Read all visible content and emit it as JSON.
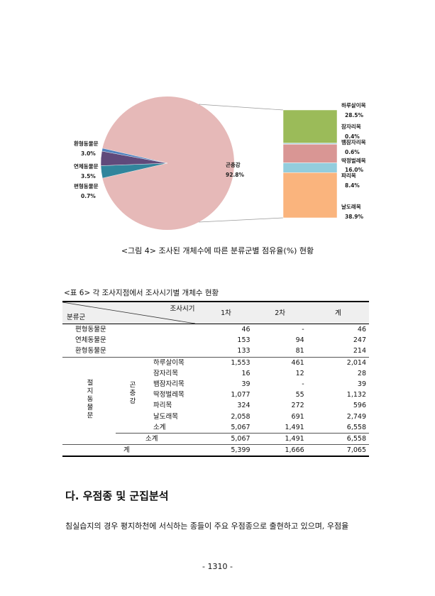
{
  "figure": {
    "caption": "<그림 4> 조사된 개체수에 따른 분류군별 점유율(%) 현황",
    "pie_labels": [
      {
        "name": "환형동물문",
        "value": "3.0%"
      },
      {
        "name": "연체동물문",
        "value": "3.5%"
      },
      {
        "name": "편형동물문",
        "value": "0.7%"
      },
      {
        "name": "곤충강",
        "value": "92.8%"
      }
    ],
    "bar_labels": [
      {
        "name": "하루살이목",
        "value": "28.5%"
      },
      {
        "name": "잠자리목",
        "value": "0.4%"
      },
      {
        "name": "뱀잠자리목",
        "value": "0.6%"
      },
      {
        "name": "딱정벌레목",
        "value": "16.0%"
      },
      {
        "name": "파리목",
        "value": "8.4%"
      },
      {
        "name": "날도래목",
        "value": "38.9%"
      }
    ]
  },
  "chart_data": {
    "type": "pie",
    "pie": {
      "slices": [
        {
          "label": "곤충강",
          "value": 92.8,
          "color": "#e6b9b8"
        },
        {
          "label": "환형동물문",
          "value": 3.0,
          "color": "#31859c"
        },
        {
          "label": "연체동물문",
          "value": 3.5,
          "color": "#604a7b"
        },
        {
          "label": "편형동물문",
          "value": 0.7,
          "color": "#4f81bd"
        }
      ]
    },
    "bar_of_pie": {
      "segments": [
        {
          "label": "하루살이목",
          "value": 28.5,
          "color": "#9bbb59"
        },
        {
          "label": "잠자리목",
          "value": 0.4,
          "color": "#8064a2"
        },
        {
          "label": "뱀잠자리목",
          "value": 0.6,
          "color": "#4bacc6"
        },
        {
          "label": "딱정벌레목",
          "value": 16.0,
          "color": "#d99694"
        },
        {
          "label": "파리목",
          "value": 8.4,
          "color": "#93cddd"
        },
        {
          "label": "날도래목",
          "value": 38.9,
          "color": "#fab47d"
        }
      ]
    }
  },
  "table": {
    "caption": "<표 6> 각 조사지점에서 조사시기별 개체수 현황",
    "header": {
      "diag_top": "조사시기",
      "diag_bottom": "분류군",
      "col1": "1차",
      "col2": "2차",
      "col3": "계"
    },
    "group_outer": "절지동물문",
    "group_inner": "곤충강",
    "rows_top": [
      {
        "name": "편형동물문",
        "c1": "46",
        "c2": "-",
        "c3": "46"
      },
      {
        "name": "연체동물문",
        "c1": "153",
        "c2": "94",
        "c3": "247"
      },
      {
        "name": "환형동물문",
        "c1": "133",
        "c2": "81",
        "c3": "214"
      }
    ],
    "rows_insect": [
      {
        "name": "하루살이목",
        "c1": "1,553",
        "c2": "461",
        "c3": "2,014"
      },
      {
        "name": "잠자리목",
        "c1": "16",
        "c2": "12",
        "c3": "28"
      },
      {
        "name": "뱀잠자리목",
        "c1": "39",
        "c2": "-",
        "c3": "39"
      },
      {
        "name": "딱정벌레목",
        "c1": "1,077",
        "c2": "55",
        "c3": "1,132"
      },
      {
        "name": "파리목",
        "c1": "324",
        "c2": "272",
        "c3": "596"
      },
      {
        "name": "날도래목",
        "c1": "2,058",
        "c2": "691",
        "c3": "2,749"
      }
    ],
    "insect_subtotal": {
      "name": "소계",
      "c1": "5,067",
      "c2": "1,491",
      "c3": "6,558"
    },
    "arthropod_subtotal": {
      "name": "소계",
      "c1": "5,067",
      "c2": "1,491",
      "c3": "6,558"
    },
    "total": {
      "name": "계",
      "c1": "5,399",
      "c2": "1,666",
      "c3": "7,065"
    }
  },
  "section": {
    "title": "다. 우점종 및 군집분석",
    "body": "침실습지의 경우 평지하천에 서식하는 종들이 주요 우점종으로 출현하고 있으며, 우점율"
  },
  "page_number": "- 1310 -"
}
